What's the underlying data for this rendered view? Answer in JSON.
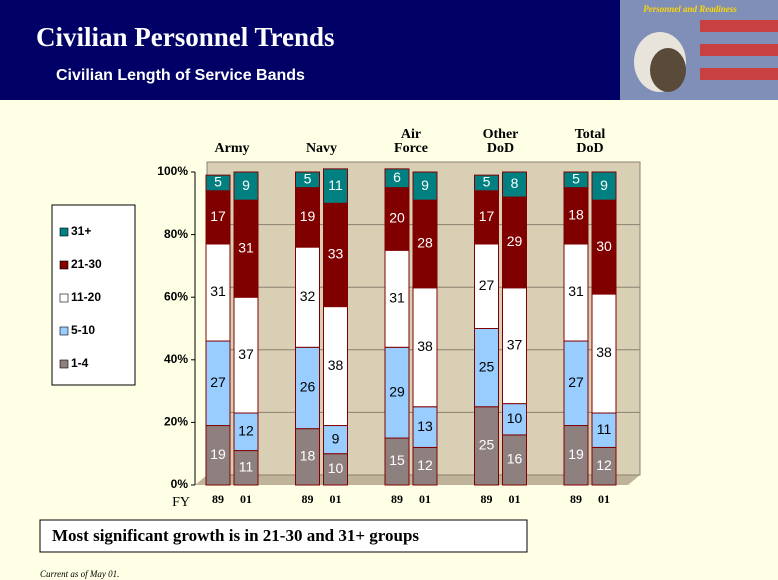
{
  "logo": {
    "text": "Personnel and Readiness"
  },
  "chart_data": {
    "type": "stacked_bar",
    "title": "Civilian Personnel Trends",
    "subtitle": "Civilian Length of Service Bands",
    "x_label": "FY",
    "groups": [
      "Army",
      "Navy",
      "Air Force",
      "Other DoD",
      "Total DoD"
    ],
    "categories": [
      "89",
      "01",
      "89",
      "01",
      "89",
      "01",
      "89",
      "01",
      "89",
      "01"
    ],
    "series": [
      {
        "name": "1-4",
        "color": "#8f8080",
        "label_color": "#ffffff",
        "values": [
          19,
          11,
          18,
          10,
          15,
          12,
          25,
          16,
          19,
          12
        ]
      },
      {
        "name": "5-10",
        "color": "#99ccff",
        "label_color": "#000000",
        "values": [
          27,
          12,
          26,
          9,
          29,
          13,
          25,
          10,
          27,
          11
        ]
      },
      {
        "name": "11-20",
        "color": "#ffffff",
        "label_color": "#000000",
        "values": [
          31,
          37,
          32,
          38,
          31,
          38,
          27,
          37,
          31,
          38
        ]
      },
      {
        "name": "21-30",
        "color": "#800000",
        "label_color": "#ffffff",
        "values": [
          17,
          31,
          19,
          33,
          20,
          28,
          17,
          29,
          18,
          30
        ]
      },
      {
        "name": "31+",
        "color": "#008080",
        "label_color": "#ffffff",
        "values": [
          5,
          9,
          5,
          11,
          6,
          9,
          5,
          8,
          5,
          9
        ]
      }
    ],
    "ylim": [
      0,
      100
    ],
    "yticks": [
      {
        "value": 0,
        "label": "0%"
      },
      {
        "value": 20,
        "label": "20%"
      },
      {
        "value": 40,
        "label": "40%"
      },
      {
        "value": 60,
        "label": "60%"
      },
      {
        "value": 80,
        "label": "80%"
      },
      {
        "value": 100,
        "label": "100%"
      }
    ],
    "grid": true,
    "annotation": "Most significant growth is in 21-30 and 31+ groups",
    "note": "Current as of May 01."
  }
}
